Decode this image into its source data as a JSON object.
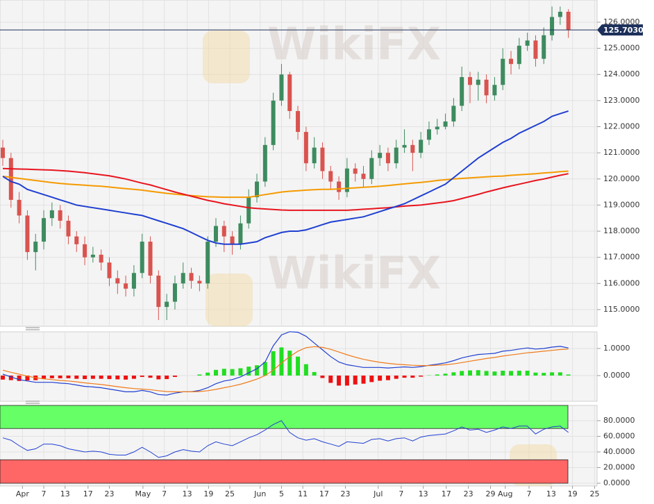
{
  "watermark": "WikiFX",
  "chart_data": [
    {
      "type": "candlestick",
      "xlim": [
        -0.34,
        72.5
      ],
      "ylim": [
        114.36,
        126.85
      ],
      "yticks": [
        {
          "value": 115,
          "label": "115.0000"
        },
        {
          "value": 116,
          "label": "116.0000"
        },
        {
          "value": 117,
          "label": "117.0000"
        },
        {
          "value": 118,
          "label": "118.0000"
        },
        {
          "value": 119,
          "label": "119.0000"
        },
        {
          "value": 120,
          "label": "120.0000"
        },
        {
          "value": 121,
          "label": "121.0000"
        },
        {
          "value": 122,
          "label": "122.0000"
        },
        {
          "value": 123,
          "label": "123.0000"
        },
        {
          "value": 124,
          "label": "124.0000"
        },
        {
          "value": 125,
          "label": "125.0000"
        },
        {
          "value": 126,
          "label": "126.0000"
        }
      ],
      "grid": true,
      "up_color": "#3d8b5f",
      "down_color": "#d9534f",
      "last_price": {
        "value": 125.703,
        "label": "125.7030",
        "color": "#1c2f5a"
      },
      "ohlc": [
        [
          121.2,
          121.5,
          120.5,
          120.8
        ],
        [
          120.8,
          121.0,
          118.9,
          119.2
        ],
        [
          119.2,
          119.5,
          118.3,
          118.6
        ],
        [
          118.6,
          118.8,
          116.9,
          117.2
        ],
        [
          117.2,
          117.9,
          116.5,
          117.6
        ],
        [
          117.6,
          118.8,
          117.3,
          118.5
        ],
        [
          118.5,
          119.1,
          118.2,
          118.8
        ],
        [
          118.8,
          119.0,
          118.1,
          118.4
        ],
        [
          118.4,
          118.6,
          117.5,
          117.8
        ],
        [
          117.8,
          118.0,
          117.2,
          117.5
        ],
        [
          117.5,
          117.8,
          116.7,
          117.0
        ],
        [
          117.0,
          117.4,
          116.8,
          117.1
        ],
        [
          117.1,
          117.3,
          116.5,
          116.8
        ],
        [
          116.8,
          117.0,
          115.9,
          116.2
        ],
        [
          116.2,
          116.5,
          115.6,
          116.0
        ],
        [
          116.0,
          116.3,
          115.5,
          115.8
        ],
        [
          115.8,
          116.7,
          115.5,
          116.4
        ],
        [
          116.4,
          117.9,
          116.2,
          117.6
        ],
        [
          117.6,
          117.8,
          116.0,
          116.3
        ],
        [
          116.3,
          116.5,
          114.6,
          115.1
        ],
        [
          115.1,
          115.6,
          114.6,
          115.3
        ],
        [
          115.3,
          116.3,
          115.0,
          116.0
        ],
        [
          116.0,
          116.8,
          115.8,
          116.4
        ],
        [
          116.4,
          116.6,
          115.8,
          116.1
        ],
        [
          116.1,
          116.3,
          115.7,
          116.0
        ],
        [
          116.0,
          117.8,
          115.8,
          117.6
        ],
        [
          117.6,
          118.5,
          117.4,
          118.2
        ],
        [
          118.2,
          118.4,
          117.2,
          117.8
        ],
        [
          117.8,
          118.0,
          117.1,
          117.5
        ],
        [
          117.5,
          118.6,
          117.3,
          118.3
        ],
        [
          118.3,
          119.6,
          118.1,
          119.3
        ],
        [
          119.3,
          120.2,
          119.1,
          119.9
        ],
        [
          119.9,
          121.6,
          119.7,
          121.3
        ],
        [
          121.3,
          123.3,
          121.1,
          123.0
        ],
        [
          123.0,
          124.4,
          122.8,
          124.0
        ],
        [
          124.0,
          124.1,
          122.3,
          122.6
        ],
        [
          122.6,
          122.8,
          121.5,
          121.8
        ],
        [
          121.8,
          122.0,
          120.3,
          120.6
        ],
        [
          120.6,
          121.6,
          120.4,
          121.2
        ],
        [
          121.2,
          121.4,
          120.0,
          120.3
        ],
        [
          120.3,
          120.5,
          119.6,
          119.9
        ],
        [
          119.9,
          120.1,
          119.2,
          119.5
        ],
        [
          119.5,
          120.8,
          119.3,
          120.4
        ],
        [
          120.4,
          120.6,
          119.9,
          120.2
        ],
        [
          120.2,
          120.5,
          119.7,
          120.0
        ],
        [
          120.0,
          121.1,
          119.8,
          120.8
        ],
        [
          120.8,
          121.3,
          120.5,
          121.0
        ],
        [
          121.0,
          121.2,
          120.3,
          120.6
        ],
        [
          120.6,
          121.5,
          120.4,
          121.2
        ],
        [
          121.2,
          121.9,
          121.0,
          121.3
        ],
        [
          121.3,
          121.5,
          120.3,
          121.0
        ],
        [
          121.0,
          121.8,
          120.8,
          121.5
        ],
        [
          121.5,
          122.2,
          121.3,
          121.9
        ],
        [
          121.9,
          122.3,
          121.7,
          122.0
        ],
        [
          122.0,
          122.5,
          121.9,
          122.2
        ],
        [
          122.2,
          123.1,
          122.0,
          122.8
        ],
        [
          122.8,
          124.3,
          122.6,
          123.9
        ],
        [
          123.9,
          124.1,
          122.9,
          123.6
        ],
        [
          123.6,
          124.1,
          123.0,
          123.8
        ],
        [
          123.8,
          124.0,
          122.9,
          123.2
        ],
        [
          123.2,
          123.9,
          123.0,
          123.6
        ],
        [
          123.6,
          125.0,
          123.4,
          124.6
        ],
        [
          124.6,
          124.9,
          124.0,
          124.4
        ],
        [
          124.4,
          125.4,
          124.2,
          125.1
        ],
        [
          125.1,
          125.6,
          124.9,
          125.3
        ],
        [
          125.3,
          125.5,
          124.3,
          124.6
        ],
        [
          124.6,
          125.8,
          124.4,
          125.5
        ],
        [
          125.5,
          126.6,
          125.3,
          126.2
        ],
        [
          126.2,
          126.6,
          125.9,
          126.4
        ],
        [
          126.4,
          126.5,
          125.4,
          125.7
        ]
      ],
      "overlays": [
        {
          "color": "#f59a00",
          "values": [
            120.1,
            120.06,
            120.02,
            119.98,
            119.94,
            119.9,
            119.86,
            119.83,
            119.8,
            119.78,
            119.76,
            119.74,
            119.72,
            119.69,
            119.66,
            119.63,
            119.6,
            119.57,
            119.53,
            119.49,
            119.45,
            119.42,
            119.39,
            119.36,
            119.34,
            119.32,
            119.31,
            119.3,
            119.3,
            119.3,
            119.3,
            119.35,
            119.4,
            119.45,
            119.5,
            119.53,
            119.55,
            119.57,
            119.59,
            119.6,
            119.6,
            119.62,
            119.64,
            119.66,
            119.68,
            119.7,
            119.72,
            119.75,
            119.78,
            119.81,
            119.84,
            119.87,
            119.9,
            119.94,
            119.97,
            120.0,
            120.02,
            120.04,
            120.06,
            120.08,
            120.1,
            120.11,
            120.14,
            120.16,
            120.18,
            120.2,
            120.23,
            120.25,
            120.28,
            120.3
          ]
        },
        {
          "color": "#e8141e",
          "values": [
            120.4,
            120.39,
            120.38,
            120.37,
            120.36,
            120.35,
            120.34,
            120.32,
            120.3,
            120.27,
            120.24,
            120.2,
            120.16,
            120.12,
            120.06,
            120.0,
            119.92,
            119.84,
            119.77,
            119.68,
            119.59,
            119.5,
            119.42,
            119.34,
            119.26,
            119.18,
            119.12,
            119.05,
            119.0,
            118.95,
            118.9,
            118.87,
            118.85,
            118.83,
            118.81,
            118.8,
            118.8,
            118.8,
            118.8,
            118.8,
            118.8,
            118.8,
            118.8,
            118.82,
            118.84,
            118.86,
            118.88,
            118.9,
            118.93,
            118.96,
            118.98,
            119.0,
            119.04,
            119.08,
            119.12,
            119.17,
            119.25,
            119.33,
            119.41,
            119.5,
            119.58,
            119.66,
            119.73,
            119.8,
            119.87,
            119.94,
            120.0,
            120.07,
            120.14,
            120.2
          ]
        },
        {
          "color": "#1f3fd1",
          "values": [
            120.1,
            119.9,
            119.8,
            119.6,
            119.5,
            119.4,
            119.3,
            119.2,
            119.1,
            119.0,
            118.95,
            118.9,
            118.85,
            118.8,
            118.75,
            118.7,
            118.65,
            118.6,
            118.5,
            118.4,
            118.3,
            118.2,
            118.1,
            117.95,
            117.8,
            117.65,
            117.55,
            117.5,
            117.5,
            117.5,
            117.55,
            117.6,
            117.75,
            117.85,
            117.95,
            118.0,
            118.0,
            118.05,
            118.15,
            118.25,
            118.35,
            118.4,
            118.45,
            118.5,
            118.55,
            118.65,
            118.75,
            118.85,
            118.95,
            119.05,
            119.2,
            119.35,
            119.5,
            119.65,
            119.8,
            120.05,
            120.3,
            120.55,
            120.8,
            121.0,
            121.2,
            121.4,
            121.55,
            121.75,
            121.9,
            122.05,
            122.2,
            122.4,
            122.5,
            122.6
          ]
        }
      ]
    },
    {
      "type": "macd",
      "xlim": [
        -0.34,
        72.5
      ],
      "ylim": [
        -0.949,
        1.615
      ],
      "yticks": [
        {
          "value": 0,
          "label": "0.0000"
        },
        {
          "value": 1,
          "label": "1.0000"
        }
      ],
      "series": [
        {
          "color": "#1f3fd1",
          "values": [
            0.05,
            -0.05,
            -0.15,
            -0.2,
            -0.25,
            -0.25,
            -0.25,
            -0.28,
            -0.3,
            -0.35,
            -0.4,
            -0.42,
            -0.45,
            -0.5,
            -0.55,
            -0.6,
            -0.6,
            -0.55,
            -0.6,
            -0.7,
            -0.72,
            -0.65,
            -0.6,
            -0.6,
            -0.55,
            -0.45,
            -0.3,
            -0.2,
            -0.15,
            -0.05,
            0.1,
            0.25,
            0.5,
            1.1,
            1.5,
            1.62,
            1.6,
            1.45,
            1.2,
            0.95,
            0.7,
            0.5,
            0.4,
            0.35,
            0.3,
            0.3,
            0.3,
            0.28,
            0.3,
            0.32,
            0.3,
            0.33,
            0.38,
            0.42,
            0.47,
            0.55,
            0.65,
            0.72,
            0.78,
            0.8,
            0.82,
            0.9,
            0.93,
            0.98,
            1.02,
            0.98,
            1.0,
            1.05,
            1.08,
            1.02
          ]
        },
        {
          "color": "#f07a1a",
          "values": [
            0.2,
            0.12,
            0.05,
            -0.02,
            -0.08,
            -0.12,
            -0.15,
            -0.18,
            -0.2,
            -0.23,
            -0.27,
            -0.3,
            -0.33,
            -0.37,
            -0.41,
            -0.45,
            -0.48,
            -0.5,
            -0.52,
            -0.56,
            -0.59,
            -0.6,
            -0.6,
            -0.6,
            -0.59,
            -0.56,
            -0.51,
            -0.45,
            -0.39,
            -0.32,
            -0.23,
            -0.13,
            0.0,
            0.2,
            0.46,
            0.7,
            0.9,
            1.03,
            1.07,
            1.04,
            0.97,
            0.87,
            0.77,
            0.68,
            0.6,
            0.54,
            0.49,
            0.45,
            0.42,
            0.4,
            0.38,
            0.37,
            0.37,
            0.38,
            0.4,
            0.43,
            0.48,
            0.53,
            0.58,
            0.63,
            0.67,
            0.72,
            0.76,
            0.8,
            0.84,
            0.87,
            0.9,
            0.93,
            0.96,
            0.98
          ]
        }
      ],
      "histogram": {
        "up_color": "#22dd22",
        "down_color": "#ee1111",
        "values": [
          -0.15,
          -0.17,
          -0.2,
          -0.18,
          -0.17,
          -0.13,
          -0.1,
          -0.1,
          -0.1,
          -0.12,
          -0.13,
          -0.12,
          -0.12,
          -0.13,
          -0.14,
          -0.15,
          -0.12,
          -0.05,
          -0.08,
          -0.14,
          -0.13,
          -0.05,
          0,
          0,
          0.04,
          0.11,
          0.21,
          0.25,
          0.24,
          0.27,
          0.33,
          0.38,
          0.5,
          0.9,
          1.04,
          0.92,
          0.7,
          0.42,
          0.13,
          -0.09,
          -0.27,
          -0.37,
          -0.37,
          -0.33,
          -0.3,
          -0.24,
          -0.19,
          -0.17,
          -0.12,
          -0.08,
          -0.08,
          -0.04,
          0.01,
          0.04,
          0.07,
          0.12,
          0.17,
          0.19,
          0.2,
          0.17,
          0.15,
          0.18,
          0.17,
          0.18,
          0.18,
          0.11,
          0.1,
          0.12,
          0.12,
          0.04
        ]
      }
    },
    {
      "type": "line",
      "xlim": [
        -0.34,
        72.5
      ],
      "ylim": [
        -3.5,
        99.5
      ],
      "yticks": [
        {
          "value": 0,
          "label": "0.0000"
        },
        {
          "value": 20,
          "label": "20.0000"
        },
        {
          "value": 40,
          "label": "40.0000"
        },
        {
          "value": 60,
          "label": "60.0000"
        },
        {
          "value": 80,
          "label": "80.0000"
        }
      ],
      "bands": [
        {
          "from": 70,
          "to": 100,
          "color": "#66ff66"
        },
        {
          "from": 0,
          "to": 30,
          "color": "#ff6666"
        }
      ],
      "color": "#1f3fd1",
      "values": [
        58,
        55,
        48,
        42,
        44,
        50,
        50,
        48,
        44,
        42,
        40,
        41,
        40,
        37,
        36,
        36,
        40,
        46,
        40,
        33,
        35,
        40,
        43,
        41,
        40,
        48,
        53,
        50,
        48,
        53,
        58,
        62,
        68,
        75,
        80,
        65,
        58,
        55,
        57,
        53,
        50,
        47,
        53,
        52,
        51,
        56,
        57,
        54,
        57,
        58,
        54,
        59,
        61,
        62,
        63,
        67,
        72,
        68,
        69,
        65,
        68,
        72,
        70,
        73,
        73,
        63,
        69,
        72,
        73,
        65
      ],
      "xticks": [
        {
          "value": 2.4,
          "label": "Apr"
        },
        {
          "value": 5,
          "label": "7"
        },
        {
          "value": 7.6,
          "label": "13"
        },
        {
          "value": 10.4,
          "label": "17"
        },
        {
          "value": 13,
          "label": "23"
        },
        {
          "value": 17.1,
          "label": "May"
        },
        {
          "value": 19.7,
          "label": "7"
        },
        {
          "value": 22.5,
          "label": "13"
        },
        {
          "value": 25.1,
          "label": "19"
        },
        {
          "value": 27.7,
          "label": "25"
        },
        {
          "value": 31.4,
          "label": "Jun"
        },
        {
          "value": 34,
          "label": "5"
        },
        {
          "value": 36.6,
          "label": "11"
        },
        {
          "value": 39.2,
          "label": "17"
        },
        {
          "value": 41.8,
          "label": "23"
        },
        {
          "value": 45.8,
          "label": "Jul"
        },
        {
          "value": 48.6,
          "label": "7"
        },
        {
          "value": 51.3,
          "label": "13"
        },
        {
          "value": 54.1,
          "label": "17"
        },
        {
          "value": 56.8,
          "label": "23"
        },
        {
          "value": 59.5,
          "label": "29"
        },
        {
          "value": 61.3,
          "label": "Aug"
        },
        {
          "value": 64.2,
          "label": "7"
        },
        {
          "value": 66.9,
          "label": "13"
        },
        {
          "value": 69.5,
          "label": "19"
        },
        {
          "value": 72.2,
          "label": "25"
        }
      ]
    }
  ]
}
